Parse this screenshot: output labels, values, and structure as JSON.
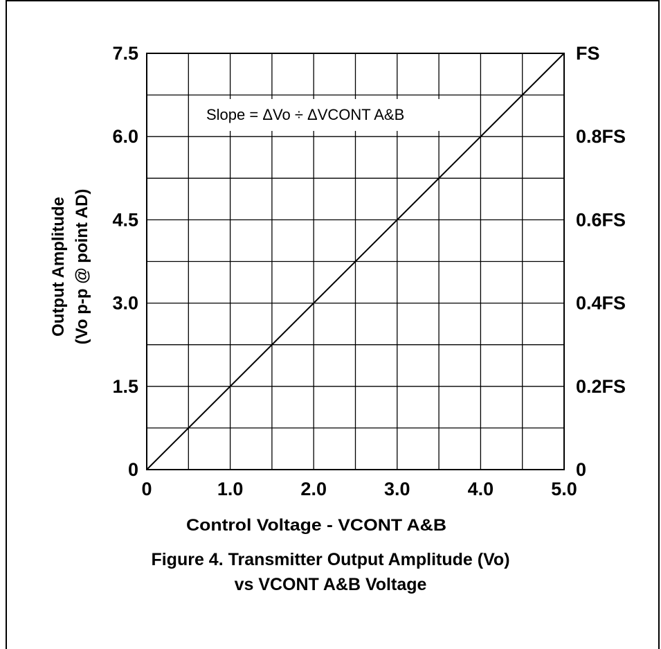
{
  "chart_data": {
    "type": "line",
    "xlabel": "Control Voltage - VCONT A&B",
    "ylabel_line1": "Output Amplitude",
    "ylabel_line2": "(Vo p-p @ point AD)",
    "xlim": [
      0,
      5.0
    ],
    "ylim": [
      0,
      7.5
    ],
    "x_ticks": [
      "0",
      "1.0",
      "2.0",
      "3.0",
      "4.0",
      "5.0"
    ],
    "y_ticks": [
      "0",
      "1.5",
      "3.0",
      "4.5",
      "6.0",
      "7.5"
    ],
    "y_ticks_right": [
      "0",
      "0.2FS",
      "0.4FS",
      "0.6FS",
      "0.8FS",
      "FS"
    ],
    "grid": true,
    "annotation": "Slope = ΔVo ÷ ΔVCONT A&B",
    "series": [
      {
        "x": [
          0,
          5.0
        ],
        "y": [
          0,
          7.5
        ]
      }
    ]
  },
  "caption": {
    "line1": "Figure 4.  Transmitter Output Amplitude (Vo)",
    "line2": "vs VCONT A&B Voltage"
  }
}
